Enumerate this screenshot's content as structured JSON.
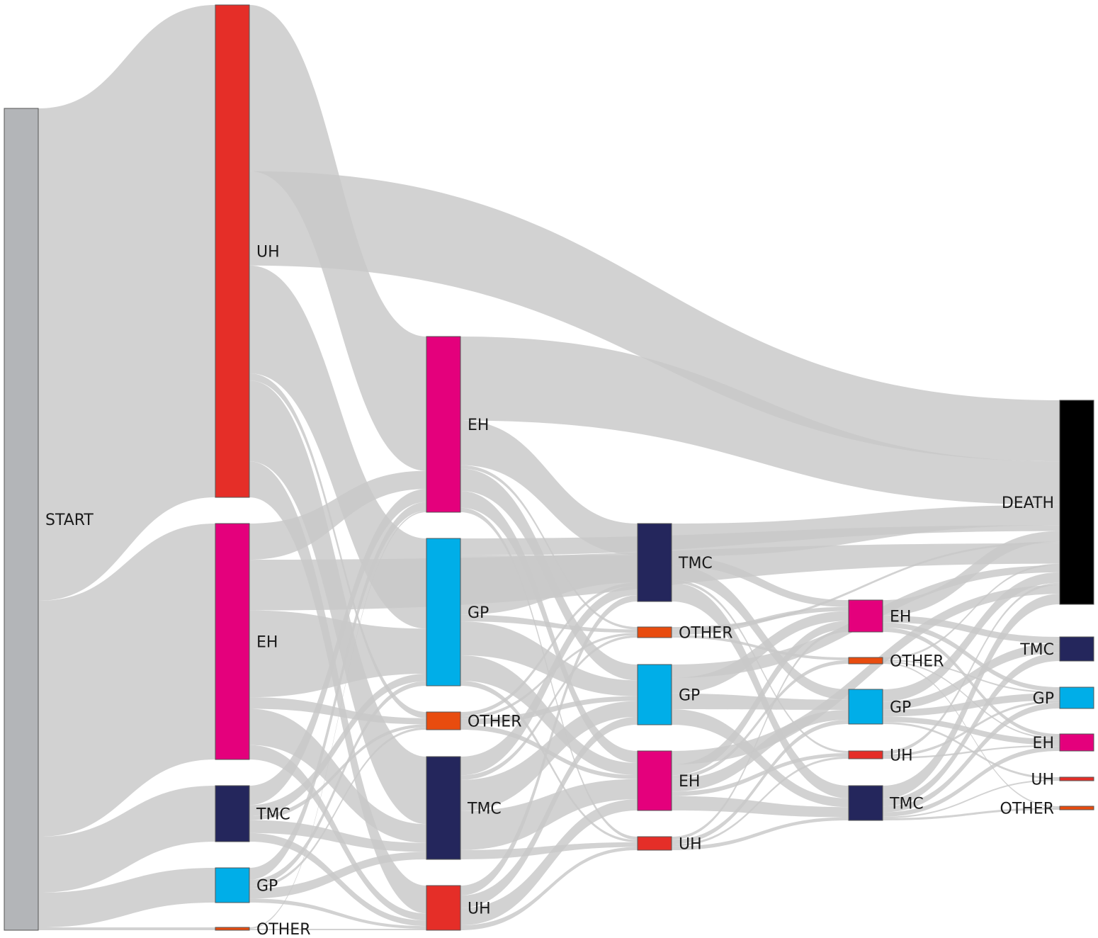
{
  "nodes": [
    {
      "id": "start",
      "label": "START",
      "col": 0,
      "y0": 153,
      "y1": 1313,
      "color": "#b3b5b8"
    },
    {
      "id": "c1-uh",
      "label": "UH",
      "col": 1,
      "y0": 7,
      "y1": 702,
      "color": "#e52e28"
    },
    {
      "id": "c1-eh",
      "label": "EH",
      "col": 1,
      "y0": 739,
      "y1": 1072,
      "color": "#e4007c"
    },
    {
      "id": "c1-tmc",
      "label": "TMC",
      "col": 1,
      "y0": 1109,
      "y1": 1188,
      "color": "#24265c"
    },
    {
      "id": "c1-gp",
      "label": "GP",
      "col": 1,
      "y0": 1225,
      "y1": 1274,
      "color": "#00aee8"
    },
    {
      "id": "c1-other",
      "label": "OTHER",
      "col": 1,
      "y0": 1309,
      "y1": 1313,
      "color": "#e84c0f"
    },
    {
      "id": "c2-eh",
      "label": "EH",
      "col": 2,
      "y0": 475,
      "y1": 723,
      "color": "#e4007c"
    },
    {
      "id": "c2-gp",
      "label": "GP",
      "col": 2,
      "y0": 760,
      "y1": 968,
      "color": "#00aee8"
    },
    {
      "id": "c2-other",
      "label": "OTHER",
      "col": 2,
      "y0": 1005,
      "y1": 1030,
      "color": "#e84c0f"
    },
    {
      "id": "c2-tmc",
      "label": "TMC",
      "col": 2,
      "y0": 1068,
      "y1": 1213,
      "color": "#24265c"
    },
    {
      "id": "c2-uh",
      "label": "UH",
      "col": 2,
      "y0": 1250,
      "y1": 1313,
      "color": "#e52e28"
    },
    {
      "id": "c3-tmc",
      "label": "TMC",
      "col": 3,
      "y0": 739,
      "y1": 849,
      "color": "#24265c"
    },
    {
      "id": "c3-other",
      "label": "OTHER",
      "col": 3,
      "y0": 885,
      "y1": 900,
      "color": "#e84c0f"
    },
    {
      "id": "c3-gp",
      "label": "GP",
      "col": 3,
      "y0": 938,
      "y1": 1023,
      "color": "#00aee8"
    },
    {
      "id": "c3-eh",
      "label": "EH",
      "col": 3,
      "y0": 1060,
      "y1": 1144,
      "color": "#e4007c"
    },
    {
      "id": "c3-uh",
      "label": "UH",
      "col": 3,
      "y0": 1181,
      "y1": 1200,
      "color": "#e52e28"
    },
    {
      "id": "c4-eh",
      "label": "EH",
      "col": 4,
      "y0": 847,
      "y1": 892,
      "color": "#e4007c"
    },
    {
      "id": "c4-other",
      "label": "OTHER",
      "col": 4,
      "y0": 928,
      "y1": 937,
      "color": "#e84c0f"
    },
    {
      "id": "c4-gp",
      "label": "GP",
      "col": 4,
      "y0": 973,
      "y1": 1022,
      "color": "#00aee8"
    },
    {
      "id": "c4-uh",
      "label": "UH",
      "col": 4,
      "y0": 1060,
      "y1": 1071,
      "color": "#e52e28"
    },
    {
      "id": "c4-tmc",
      "label": "TMC",
      "col": 4,
      "y0": 1109,
      "y1": 1158,
      "color": "#24265c"
    },
    {
      "id": "death",
      "label": "DEATH",
      "col": 5,
      "y0": 565,
      "y1": 853,
      "color": "#000000"
    },
    {
      "id": "c5-tmc",
      "label": "TMC",
      "col": 5,
      "y0": 899,
      "y1": 933,
      "color": "#24265c"
    },
    {
      "id": "c5-gp",
      "label": "GP",
      "col": 5,
      "y0": 970,
      "y1": 1000,
      "color": "#00aee8"
    },
    {
      "id": "c5-eh",
      "label": "EH",
      "col": 5,
      "y0": 1036,
      "y1": 1060,
      "color": "#e4007c"
    },
    {
      "id": "c5-uh",
      "label": "UH",
      "col": 5,
      "y0": 1097,
      "y1": 1102,
      "color": "#e52e28"
    },
    {
      "id": "c5-other",
      "label": "OTHER",
      "col": 5,
      "y0": 1138,
      "y1": 1143,
      "color": "#e84c0f"
    }
  ],
  "links": [
    {
      "source": "start",
      "target": "c1-uh",
      "value": 695
    },
    {
      "source": "start",
      "target": "c1-eh",
      "value": 333
    },
    {
      "source": "start",
      "target": "c1-tmc",
      "value": 79
    },
    {
      "source": "start",
      "target": "c1-gp",
      "value": 49
    },
    {
      "source": "start",
      "target": "c1-other",
      "value": 4
    },
    {
      "source": "c1-uh",
      "target": "c2-eh",
      "value": 185
    },
    {
      "source": "c1-uh",
      "target": "death",
      "value": 105
    },
    {
      "source": "c1-uh",
      "target": "c2-gp",
      "value": 120
    },
    {
      "source": "c1-uh",
      "target": "c2-tmc",
      "value": 90
    },
    {
      "source": "c1-uh",
      "target": "c2-other",
      "value": 8
    },
    {
      "source": "c1-uh",
      "target": "c2-uh",
      "value": 40
    },
    {
      "source": "c1-eh",
      "target": "death",
      "value": 35
    },
    {
      "source": "c1-eh",
      "target": "c2-gp",
      "value": 60
    },
    {
      "source": "c1-eh",
      "target": "c2-eh",
      "value": 25
    },
    {
      "source": "c1-eh",
      "target": "c2-tmc",
      "value": 25
    },
    {
      "source": "c1-eh",
      "target": "c2-other",
      "value": 8
    },
    {
      "source": "c1-eh",
      "target": "c2-uh",
      "value": 10
    },
    {
      "source": "c1-tmc",
      "target": "c2-eh",
      "value": 18
    },
    {
      "source": "c1-tmc",
      "target": "c2-gp",
      "value": 10
    },
    {
      "source": "c1-tmc",
      "target": "c2-tmc",
      "value": 12
    },
    {
      "source": "c1-tmc",
      "target": "c2-uh",
      "value": 8
    },
    {
      "source": "c1-tmc",
      "target": "c2-other",
      "value": 4
    },
    {
      "source": "c1-gp",
      "target": "c2-eh",
      "value": 12
    },
    {
      "source": "c1-gp",
      "target": "c2-gp",
      "value": 6
    },
    {
      "source": "c1-gp",
      "target": "c2-tmc",
      "value": 10
    },
    {
      "source": "c1-gp",
      "target": "c2-uh",
      "value": 4
    },
    {
      "source": "c1-gp",
      "target": "c2-other",
      "value": 3
    },
    {
      "source": "c1-other",
      "target": "c2-uh",
      "value": 2
    },
    {
      "source": "c1-other",
      "target": "c2-eh",
      "value": 2
    },
    {
      "source": "c2-eh",
      "target": "death",
      "value": 75
    },
    {
      "source": "c2-eh",
      "target": "c3-tmc",
      "value": 40
    },
    {
      "source": "c2-eh",
      "target": "c3-gp",
      "value": 20
    },
    {
      "source": "c2-eh",
      "target": "c3-eh",
      "value": 15
    },
    {
      "source": "c2-eh",
      "target": "c3-uh",
      "value": 4
    },
    {
      "source": "c2-eh",
      "target": "c3-other",
      "value": 3
    },
    {
      "source": "c2-gp",
      "target": "c3-tmc",
      "value": 35
    },
    {
      "source": "c2-gp",
      "target": "c3-gp",
      "value": 20
    },
    {
      "source": "c2-gp",
      "target": "c3-eh",
      "value": 15
    },
    {
      "source": "c2-gp",
      "target": "death",
      "value": 10
    },
    {
      "source": "c2-gp",
      "target": "c3-other",
      "value": 4
    },
    {
      "source": "c2-gp",
      "target": "c3-uh",
      "value": 3
    },
    {
      "source": "c2-other",
      "target": "c3-gp",
      "value": 6
    },
    {
      "source": "c2-other",
      "target": "c3-eh",
      "value": 5
    },
    {
      "source": "c2-other",
      "target": "c3-tmc",
      "value": 4
    },
    {
      "source": "c2-other",
      "target": "c3-other",
      "value": 3
    },
    {
      "source": "c2-tmc",
      "target": "c3-gp",
      "value": 20
    },
    {
      "source": "c2-tmc",
      "target": "c3-eh",
      "value": 25
    },
    {
      "source": "c2-tmc",
      "target": "c3-tmc",
      "value": 12
    },
    {
      "source": "c2-tmc",
      "target": "c3-uh",
      "value": 6
    },
    {
      "source": "c2-tmc",
      "target": "c3-other",
      "value": 3
    },
    {
      "source": "c2-uh",
      "target": "c3-eh",
      "value": 14
    },
    {
      "source": "c2-uh",
      "target": "c3-gp",
      "value": 10
    },
    {
      "source": "c2-uh",
      "target": "c3-tmc",
      "value": 8
    },
    {
      "source": "c2-uh",
      "target": "c3-uh",
      "value": 4
    },
    {
      "source": "c3-tmc",
      "target": "death",
      "value": 35
    },
    {
      "source": "c3-tmc",
      "target": "c4-tmc",
      "value": 20
    },
    {
      "source": "c3-tmc",
      "target": "c4-gp",
      "value": 15
    },
    {
      "source": "c3-tmc",
      "target": "c4-eh",
      "value": 10
    },
    {
      "source": "c3-tmc",
      "target": "c4-uh",
      "value": 3
    },
    {
      "source": "c3-other",
      "target": "c4-eh",
      "value": 6
    },
    {
      "source": "c3-other",
      "target": "c4-other",
      "value": 3
    },
    {
      "source": "c3-other",
      "target": "death",
      "value": 3
    },
    {
      "source": "c3-gp",
      "target": "c4-eh",
      "value": 14
    },
    {
      "source": "c3-gp",
      "target": "c4-gp",
      "value": 14
    },
    {
      "source": "c3-gp",
      "target": "c4-tmc",
      "value": 14
    },
    {
      "source": "c3-gp",
      "target": "death",
      "value": 12
    },
    {
      "source": "c3-eh",
      "target": "c4-tmc",
      "value": 16
    },
    {
      "source": "c3-eh",
      "target": "c4-gp",
      "value": 14
    },
    {
      "source": "c3-eh",
      "target": "death",
      "value": 15
    },
    {
      "source": "c3-eh",
      "target": "c4-eh",
      "value": 12
    },
    {
      "source": "c3-eh",
      "target": "c4-uh",
      "value": 5
    },
    {
      "source": "c3-eh",
      "target": "c4-other",
      "value": 4
    },
    {
      "source": "c3-uh",
      "target": "c4-gp",
      "value": 6
    },
    {
      "source": "c3-uh",
      "target": "c4-tmc",
      "value": 5
    },
    {
      "source": "c3-uh",
      "target": "c4-eh",
      "value": 4
    },
    {
      "source": "c3-uh",
      "target": "c4-uh",
      "value": 3
    },
    {
      "source": "c4-eh",
      "target": "death",
      "value": 18
    },
    {
      "source": "c4-eh",
      "target": "c5-tmc",
      "value": 8
    },
    {
      "source": "c4-eh",
      "target": "c5-gp",
      "value": 6
    },
    {
      "source": "c4-eh",
      "target": "c5-eh",
      "value": 5
    },
    {
      "source": "c4-other",
      "target": "death",
      "value": 3
    },
    {
      "source": "c4-other",
      "target": "c5-gp",
      "value": 2
    },
    {
      "source": "c4-other",
      "target": "c5-eh",
      "value": 2
    },
    {
      "source": "c4-other",
      "target": "c5-other",
      "value": 2
    },
    {
      "source": "c4-gp",
      "target": "death",
      "value": 18
    },
    {
      "source": "c4-gp",
      "target": "c5-tmc",
      "value": 12
    },
    {
      "source": "c4-gp",
      "target": "c5-gp",
      "value": 10
    },
    {
      "source": "c4-gp",
      "target": "c5-eh",
      "value": 8
    },
    {
      "source": "c4-gp",
      "target": "c5-uh",
      "value": 3
    },
    {
      "source": "c4-uh",
      "target": "death",
      "value": 4
    },
    {
      "source": "c4-uh",
      "target": "c5-gp",
      "value": 3
    },
    {
      "source": "c4-uh",
      "target": "c5-eh",
      "value": 2
    },
    {
      "source": "c4-tmc",
      "target": "death",
      "value": 18
    },
    {
      "source": "c4-tmc",
      "target": "c5-tmc",
      "value": 10
    },
    {
      "source": "c4-tmc",
      "target": "c5-gp",
      "value": 8
    },
    {
      "source": "c4-tmc",
      "target": "c5-eh",
      "value": 6
    },
    {
      "source": "c4-tmc",
      "target": "c5-uh",
      "value": 2
    },
    {
      "source": "c4-tmc",
      "target": "c5-other",
      "value": 3
    }
  ]
}
